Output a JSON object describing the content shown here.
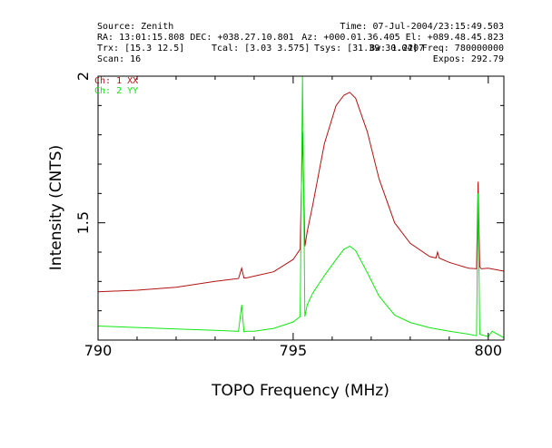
{
  "header": {
    "source": "Source: Zenith",
    "time": "Time: 07-Jul-2004/23:15:49.503",
    "ra_dec": "RA: 13:01:15.808 DEC: +038.27.10.801",
    "az_el": "Az: +000.01.36.405 El: +089.48.45.823",
    "trx": "Trx: [15.3 12.5]",
    "tcal": "Tcal: [3.03 3.575]",
    "tsys": "Tsys: [31.39 30.04]",
    "bw": "Bw: 1.2207",
    "freq": "Freq: 780000000",
    "scan": "Scan: 16",
    "expos": "Expos: 292.79"
  },
  "colors": {
    "ch1": "#b21212",
    "ch2": "#12e812",
    "axis": "#000000",
    "background": "#ffffff"
  },
  "chart_data": {
    "type": "line",
    "title": "",
    "xlabel": "TOPO Frequency (MHz)",
    "ylabel": "Intensity (CNTS)",
    "xlim": [
      790,
      800.4
    ],
    "ylim": [
      1.1,
      2.0
    ],
    "xticks": [
      790,
      795,
      800
    ],
    "yticks": [
      1.5,
      2
    ],
    "grid": false,
    "legend": "top-left",
    "series": [
      {
        "name": "Ch: 1 XX",
        "color": "#b21212",
        "x": [
          790,
          791,
          792,
          793,
          793.6,
          793.68,
          793.74,
          793.8,
          794,
          794.5,
          795,
          795.18,
          795.24,
          795.3,
          795.36,
          795.5,
          795.8,
          796.1,
          796.3,
          796.45,
          796.6,
          796.9,
          797.2,
          797.6,
          798,
          798.5,
          798.66,
          798.7,
          798.74,
          799,
          799.5,
          799.7,
          799.74,
          799.78,
          799.82,
          800,
          800.4
        ],
        "y": [
          1.265,
          1.27,
          1.28,
          1.3,
          1.31,
          1.345,
          1.312,
          1.312,
          1.318,
          1.333,
          1.375,
          1.41,
          1.81,
          1.42,
          1.47,
          1.56,
          1.77,
          1.9,
          1.935,
          1.945,
          1.925,
          1.81,
          1.65,
          1.5,
          1.43,
          1.385,
          1.38,
          1.4,
          1.38,
          1.365,
          1.345,
          1.343,
          1.64,
          1.35,
          1.343,
          1.345,
          1.335
        ]
      },
      {
        "name": "Ch: 2 YY",
        "color": "#12e812",
        "x": [
          790,
          791,
          792,
          793,
          793.6,
          793.68,
          793.74,
          793.8,
          794,
          794.5,
          795,
          795.18,
          795.24,
          795.3,
          795.36,
          795.5,
          795.8,
          796.1,
          796.3,
          796.45,
          796.6,
          796.9,
          797.2,
          797.6,
          798,
          798.5,
          799,
          799.5,
          799.7,
          799.74,
          799.78,
          799.82,
          800,
          800.1,
          800.4
        ],
        "y": [
          1.148,
          1.143,
          1.138,
          1.133,
          1.13,
          1.22,
          1.128,
          1.13,
          1.13,
          1.14,
          1.162,
          1.18,
          2.0,
          1.18,
          1.22,
          1.26,
          1.32,
          1.375,
          1.41,
          1.42,
          1.405,
          1.33,
          1.25,
          1.185,
          1.16,
          1.142,
          1.13,
          1.12,
          1.115,
          1.6,
          1.12,
          1.118,
          1.112,
          1.13,
          1.108
        ]
      }
    ]
  }
}
